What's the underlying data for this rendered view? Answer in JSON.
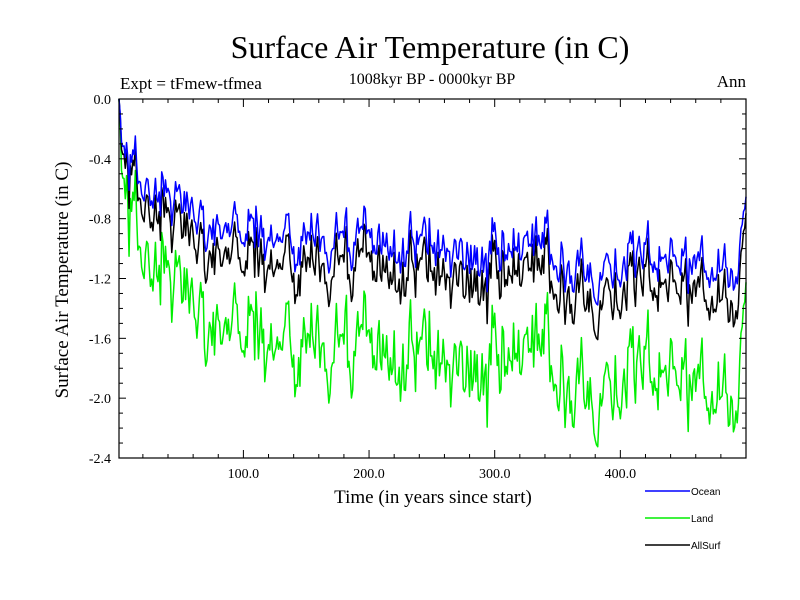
{
  "chart_data": {
    "type": "line",
    "title": "Surface Air Temperature (in C)",
    "subtitle": "1008kyr BP - 0000kyr BP",
    "left_label": "Expt = tFmew-tfmea",
    "right_label": "Ann",
    "xlabel": "Time (in years since start)",
    "ylabel": "Surface Air Temperature (in C)",
    "xlim": [
      1,
      500
    ],
    "ylim": [
      -2.4,
      0.0
    ],
    "x_ticks": [
      100,
      200,
      300,
      400
    ],
    "x_tick_labels": [
      "100.0",
      "200.0",
      "300.0",
      "400.0"
    ],
    "y_ticks": [
      0.0,
      -0.4,
      -0.8,
      -1.2,
      -1.6,
      -2.0,
      -2.4
    ],
    "y_tick_labels": [
      "0.0",
      "-0.4",
      "-0.8",
      "-1.2",
      "-1.6",
      "-2.0",
      "-2.4"
    ],
    "legend_position": "bottom-right, below plot",
    "series": [
      {
        "name": "Ocean",
        "color": "#0000ff",
        "anchors": [
          [
            1,
            0.0
          ],
          [
            4,
            -0.3
          ],
          [
            8,
            -0.4
          ],
          [
            15,
            -0.5
          ],
          [
            25,
            -0.62
          ],
          [
            40,
            -0.7
          ],
          [
            60,
            -0.75
          ],
          [
            80,
            -0.82
          ],
          [
            100,
            -0.85
          ],
          [
            120,
            -0.9
          ],
          [
            140,
            -0.95
          ],
          [
            160,
            -0.9
          ],
          [
            180,
            -0.95
          ],
          [
            200,
            -0.97
          ],
          [
            220,
            -0.98
          ],
          [
            240,
            -0.97
          ],
          [
            260,
            -0.98
          ],
          [
            280,
            -1.05
          ],
          [
            300,
            -1.08
          ],
          [
            320,
            -1.05
          ],
          [
            340,
            -1.02
          ],
          [
            360,
            -1.08
          ],
          [
            380,
            -1.12
          ],
          [
            400,
            -1.1
          ],
          [
            420,
            -1.08
          ],
          [
            440,
            -1.05
          ],
          [
            460,
            -1.1
          ],
          [
            480,
            -1.15
          ],
          [
            490,
            -1.05
          ],
          [
            500,
            -0.85
          ]
        ]
      },
      {
        "name": "Land",
        "color": "#00ee00",
        "anchors": [
          [
            1,
            0.0
          ],
          [
            4,
            -0.5
          ],
          [
            8,
            -0.7
          ],
          [
            15,
            -0.9
          ],
          [
            25,
            -1.1
          ],
          [
            40,
            -1.25
          ],
          [
            60,
            -1.35
          ],
          [
            80,
            -1.45
          ],
          [
            100,
            -1.5
          ],
          [
            120,
            -1.6
          ],
          [
            140,
            -1.65
          ],
          [
            160,
            -1.6
          ],
          [
            180,
            -1.68
          ],
          [
            200,
            -1.7
          ],
          [
            220,
            -1.72
          ],
          [
            240,
            -1.7
          ],
          [
            260,
            -1.72
          ],
          [
            280,
            -1.8
          ],
          [
            300,
            -1.85
          ],
          [
            320,
            -1.8
          ],
          [
            340,
            -1.75
          ],
          [
            360,
            -1.85
          ],
          [
            380,
            -1.9
          ],
          [
            400,
            -1.88
          ],
          [
            420,
            -1.85
          ],
          [
            440,
            -1.8
          ],
          [
            460,
            -1.9
          ],
          [
            480,
            -2.0
          ],
          [
            490,
            -1.85
          ],
          [
            500,
            -1.55
          ]
        ]
      },
      {
        "name": "AllSurf",
        "color": "#000000",
        "anchors": [
          [
            1,
            0.0
          ],
          [
            4,
            -0.35
          ],
          [
            8,
            -0.48
          ],
          [
            15,
            -0.6
          ],
          [
            25,
            -0.75
          ],
          [
            40,
            -0.85
          ],
          [
            60,
            -0.92
          ],
          [
            80,
            -0.98
          ],
          [
            100,
            -1.02
          ],
          [
            120,
            -1.08
          ],
          [
            140,
            -1.12
          ],
          [
            160,
            -1.08
          ],
          [
            180,
            -1.12
          ],
          [
            200,
            -1.14
          ],
          [
            220,
            -1.15
          ],
          [
            240,
            -1.14
          ],
          [
            260,
            -1.15
          ],
          [
            280,
            -1.22
          ],
          [
            300,
            -1.25
          ],
          [
            320,
            -1.22
          ],
          [
            340,
            -1.2
          ],
          [
            360,
            -1.25
          ],
          [
            380,
            -1.3
          ],
          [
            400,
            -1.28
          ],
          [
            420,
            -1.25
          ],
          [
            440,
            -1.22
          ],
          [
            460,
            -1.28
          ],
          [
            480,
            -1.35
          ],
          [
            490,
            -1.25
          ],
          [
            500,
            -1.0
          ]
        ]
      }
    ]
  }
}
